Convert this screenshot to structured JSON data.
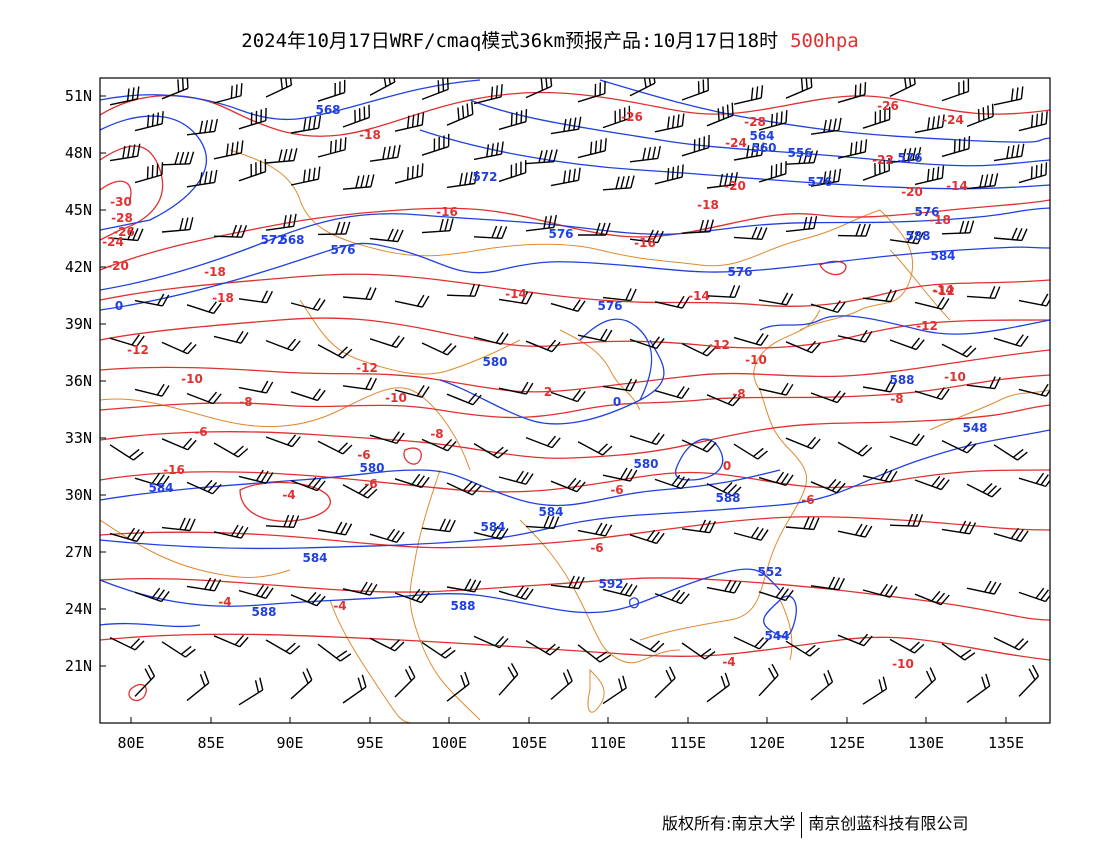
{
  "title": {
    "prefix": "2024年10月17日WRF/cmaq模式36km预报产品:10月17日18时",
    "level": "500hpa"
  },
  "colors": {
    "height": "#2040e0",
    "temperature": "#e03030",
    "boundary": "#e08a30",
    "wind": "#000000"
  },
  "axes": {
    "lat_ticks": [
      "51N",
      "48N",
      "45N",
      "42N",
      "39N",
      "36N",
      "33N",
      "30N",
      "27N",
      "24N",
      "21N"
    ],
    "lon_ticks": [
      "80E",
      "85E",
      "90E",
      "95E",
      "100E",
      "105E",
      "110E",
      "115E",
      "120E",
      "125E",
      "130E",
      "135E"
    ]
  },
  "height_labels": [
    "568",
    "568",
    "572",
    "572",
    "576",
    "576",
    "576",
    "576",
    "580",
    "580",
    "580",
    "584",
    "584",
    "584",
    "584",
    "588",
    "588",
    "588",
    "588",
    "592",
    "552",
    "548",
    "544",
    "556",
    "560",
    "564",
    "576",
    "576",
    "576",
    "584",
    "588",
    "0",
    "0"
  ],
  "temp_labels": [
    "-18",
    "-18",
    "-18",
    "-16",
    "-16",
    "-18",
    "-20",
    "-22",
    "-24",
    "-26",
    "-28",
    "-26",
    "-24",
    "-30",
    "-28",
    "-26",
    "-24",
    "-20",
    "-14",
    "-14",
    "-14",
    "-12",
    "-12",
    "-12",
    "-12",
    "-10",
    "-10",
    "-10",
    "-10",
    "-8",
    "-8",
    "-8",
    "-8",
    "-6",
    "-6",
    "-6",
    "-6",
    "-6",
    "-4",
    "-4",
    "-4",
    "-4",
    "-10",
    "-16",
    "-18",
    "-20",
    "-14",
    "-12",
    "0",
    "-6",
    "2"
  ],
  "copyright": {
    "left": "版权所有:南京大学",
    "right": "南京创蓝科技有限公司"
  }
}
